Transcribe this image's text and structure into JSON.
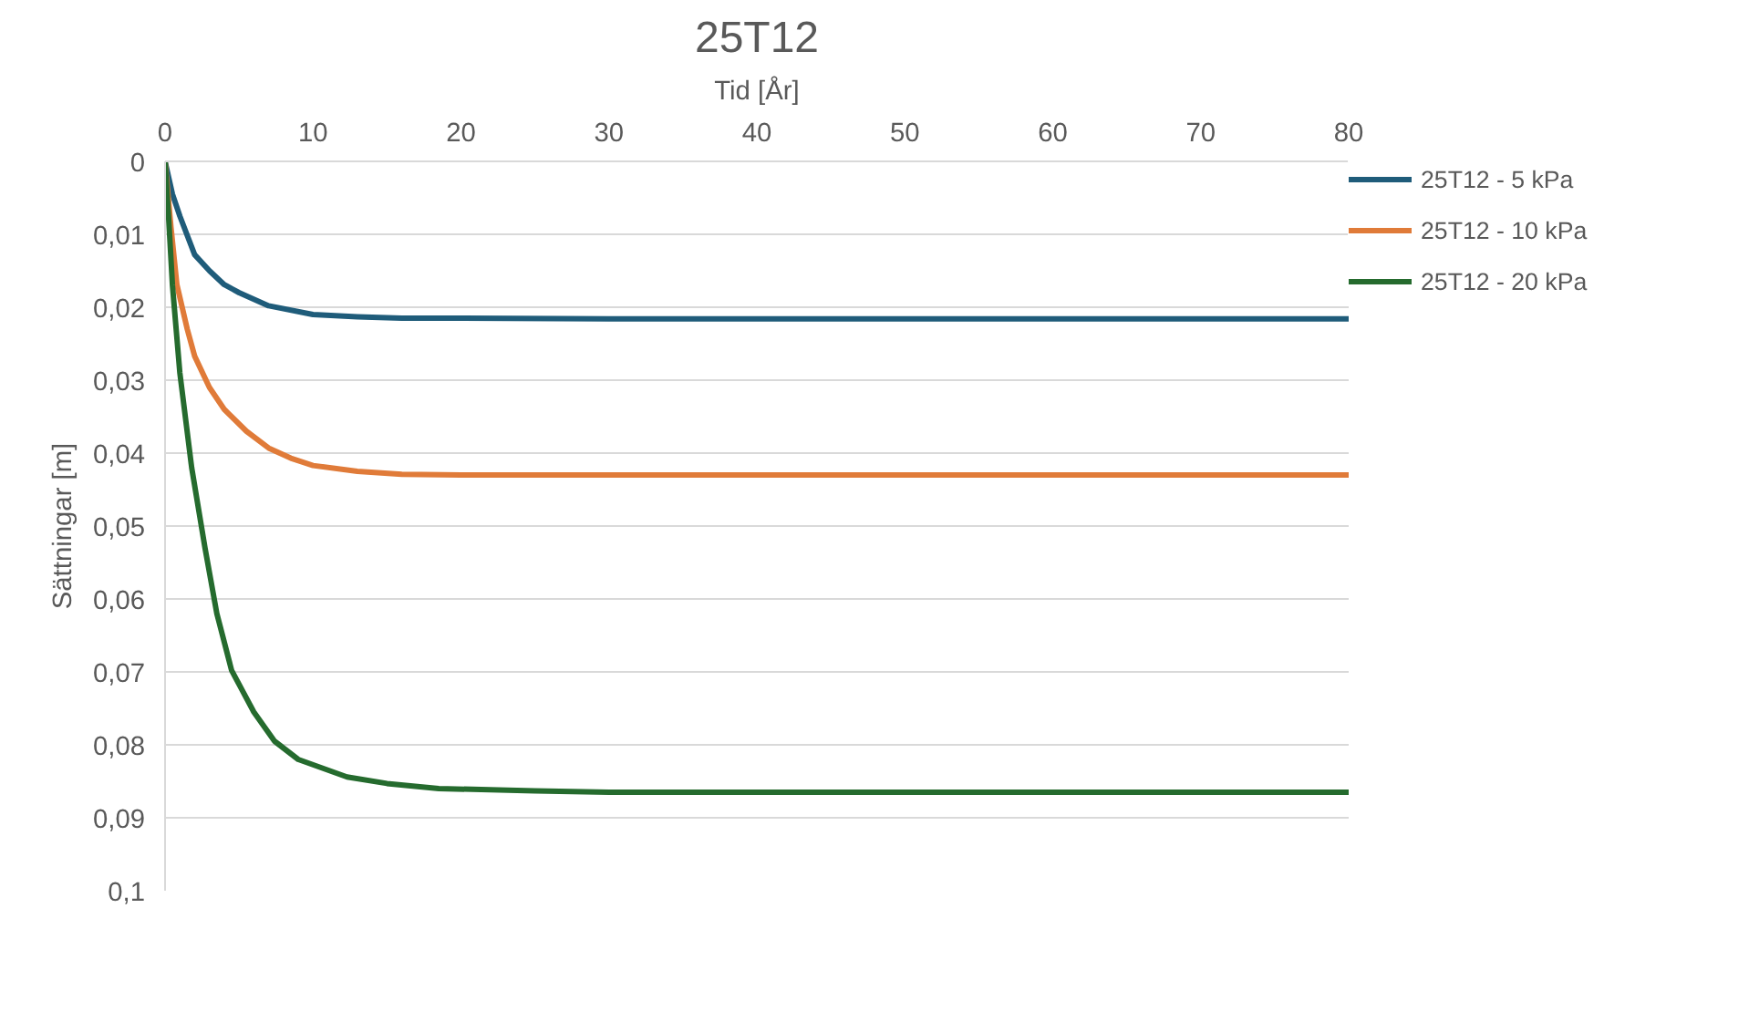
{
  "chart_data": {
    "type": "line",
    "title": "25T12",
    "xlabel": "Tid [År]",
    "ylabel": "Sättningar [m]",
    "xlim": [
      0,
      80
    ],
    "xticks": [
      0,
      10,
      20,
      30,
      40,
      50,
      60,
      70,
      80
    ],
    "ylim": [
      0.1,
      0
    ],
    "yticks": [
      {
        "value": 0,
        "label": "0"
      },
      {
        "value": 0.01,
        "label": "0,01"
      },
      {
        "value": 0.02,
        "label": "0,02"
      },
      {
        "value": 0.03,
        "label": "0,03"
      },
      {
        "value": 0.04,
        "label": "0,04"
      },
      {
        "value": 0.05,
        "label": "0,05"
      },
      {
        "value": 0.06,
        "label": "0,06"
      },
      {
        "value": 0.07,
        "label": "0,07"
      },
      {
        "value": 0.08,
        "label": "0,08"
      },
      {
        "value": 0.09,
        "label": "0,09"
      },
      {
        "value": 0.1,
        "label": "0,1"
      }
    ],
    "grid": "y",
    "legend": "right",
    "marker": "none",
    "line_style": "solid",
    "series": [
      {
        "name": "25T12 - 5 kPa",
        "color": "#1f5c7a",
        "x": [
          0,
          0.5,
          1,
          2,
          3,
          4,
          5,
          7,
          10,
          13,
          16,
          20,
          30,
          40,
          60,
          80
        ],
        "values": [
          0,
          0.0045,
          0.0075,
          0.0128,
          0.015,
          0.0169,
          0.018,
          0.0198,
          0.021,
          0.0213,
          0.0215,
          0.0215,
          0.0216,
          0.0216,
          0.0216,
          0.0216
        ]
      },
      {
        "name": "25T12 - 10 kPa",
        "color": "#e07b39",
        "x": [
          0,
          0.4,
          0.8,
          1.5,
          2,
          3,
          4,
          5.5,
          7,
          8.5,
          10,
          13,
          16,
          20,
          30,
          40,
          60,
          80
        ],
        "values": [
          0,
          0.009,
          0.0169,
          0.023,
          0.0267,
          0.031,
          0.034,
          0.037,
          0.0393,
          0.0407,
          0.0417,
          0.0425,
          0.0429,
          0.043,
          0.043,
          0.043,
          0.043,
          0.043
        ]
      },
      {
        "name": "25T12 - 20 kPa",
        "color": "#256b2e",
        "x": [
          0,
          0.25,
          0.5,
          1,
          1.8,
          2.7,
          3.5,
          4.5,
          6,
          7.4,
          9,
          12.3,
          15,
          18.5,
          25,
          30,
          40,
          60,
          80
        ],
        "values": [
          0,
          0.008,
          0.017,
          0.029,
          0.042,
          0.053,
          0.062,
          0.0698,
          0.0755,
          0.0795,
          0.082,
          0.0844,
          0.0853,
          0.086,
          0.0863,
          0.0865,
          0.0865,
          0.0865,
          0.0865
        ]
      }
    ]
  }
}
